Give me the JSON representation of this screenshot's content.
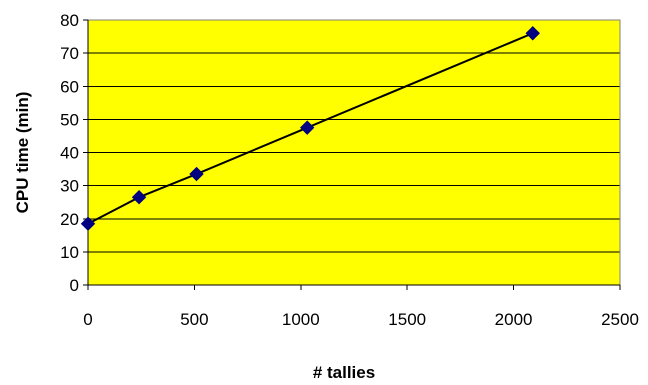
{
  "chart_data": {
    "type": "line",
    "xlabel": "# tallies",
    "ylabel": "CPU time (min)",
    "xlim": [
      0,
      2500
    ],
    "ylim": [
      0,
      80
    ],
    "xticks": [
      0,
      500,
      1000,
      1500,
      2000,
      2500
    ],
    "yticks": [
      0,
      10,
      20,
      30,
      40,
      50,
      60,
      70,
      80
    ],
    "grid": "horizontal",
    "legend": "none",
    "series": [
      {
        "x": [
          0,
          240,
          510,
          1030,
          2090
        ],
        "y": [
          18.5,
          26.5,
          33.5,
          47.5,
          76
        ]
      }
    ],
    "colors": {
      "plot_background": "#ffff00",
      "line": "#000000",
      "marker": "#000080",
      "grid": "#000000"
    }
  }
}
